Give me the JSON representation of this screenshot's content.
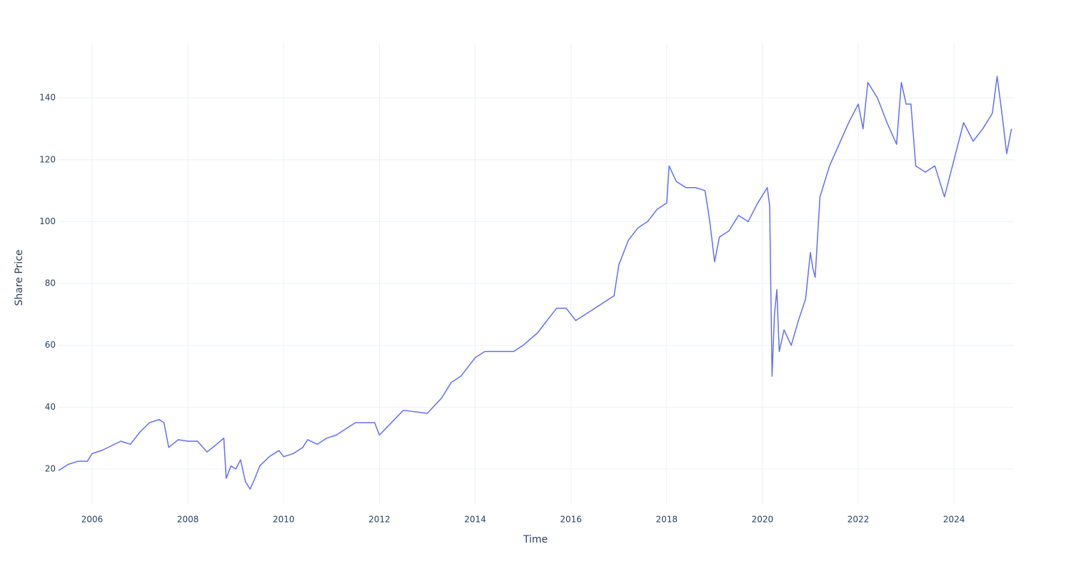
{
  "chart_data": {
    "type": "line",
    "xlabel": "Time",
    "ylabel": "Share Price",
    "x": [
      2005.3,
      2005.5,
      2005.7,
      2005.9,
      2006.0,
      2006.2,
      2006.4,
      2006.6,
      2006.8,
      2007.0,
      2007.2,
      2007.4,
      2007.5,
      2007.6,
      2007.8,
      2008.0,
      2008.2,
      2008.4,
      2008.6,
      2008.75,
      2008.8,
      2008.9,
      2009.0,
      2009.1,
      2009.2,
      2009.3,
      2009.4,
      2009.5,
      2009.7,
      2009.9,
      2010.0,
      2010.2,
      2010.4,
      2010.5,
      2010.7,
      2010.9,
      2011.1,
      2011.3,
      2011.5,
      2011.7,
      2011.9,
      2012.0,
      2012.5,
      2013.0,
      2013.3,
      2013.5,
      2013.7,
      2014.0,
      2014.2,
      2014.5,
      2014.8,
      2015.0,
      2015.3,
      2015.5,
      2015.7,
      2015.9,
      2016.1,
      2016.3,
      2016.5,
      2016.7,
      2016.9,
      2017.0,
      2017.2,
      2017.4,
      2017.6,
      2017.8,
      2018.0,
      2018.05,
      2018.2,
      2018.4,
      2018.6,
      2018.8,
      2018.9,
      2019.0,
      2019.1,
      2019.3,
      2019.5,
      2019.7,
      2019.9,
      2020.1,
      2020.15,
      2020.2,
      2020.25,
      2020.3,
      2020.35,
      2020.45,
      2020.6,
      2020.75,
      2020.9,
      2021.0,
      2021.05,
      2021.1,
      2021.2,
      2021.4,
      2021.6,
      2021.8,
      2022.0,
      2022.1,
      2022.2,
      2022.4,
      2022.6,
      2022.8,
      2022.9,
      2023.0,
      2023.1,
      2023.2,
      2023.4,
      2023.6,
      2023.8,
      2024.0,
      2024.2,
      2024.4,
      2024.6,
      2024.8,
      2024.9,
      2025.0,
      2025.1,
      2025.2
    ],
    "values": [
      19.5,
      21.5,
      22.5,
      22.5,
      25,
      26,
      27.5,
      29,
      28,
      32,
      35,
      36,
      35,
      27,
      29.5,
      29,
      29,
      25.5,
      28,
      30,
      17,
      21,
      20,
      23,
      16,
      13.5,
      17,
      21,
      24,
      26,
      24,
      25,
      27,
      29.5,
      28,
      30,
      31,
      33,
      35,
      35,
      35,
      31,
      39,
      38,
      43,
      48,
      50,
      56,
      58,
      58,
      58,
      60,
      64,
      68,
      72,
      72,
      68,
      70,
      72,
      74,
      76,
      86,
      94,
      98,
      100,
      104,
      106,
      118,
      113,
      111,
      111,
      110,
      100,
      87,
      95,
      97,
      102,
      100,
      106,
      111,
      105,
      50,
      70,
      78,
      58,
      65,
      60,
      68,
      75,
      90,
      85,
      82,
      108,
      118,
      125,
      132,
      138,
      130,
      145,
      140,
      132,
      125,
      145,
      138,
      138,
      118,
      116,
      118,
      108,
      120,
      132,
      126,
      130,
      135,
      147,
      135,
      122,
      130
    ],
    "color": "#636efa",
    "xlim": [
      2005.284,
      2025.25
    ],
    "xticks": [
      2006,
      2008,
      2010,
      2012,
      2014,
      2016,
      2018,
      2020,
      2022,
      2024
    ],
    "ylim": [
      8.46,
      157.8
    ],
    "yticks": [
      20,
      40,
      60,
      80,
      100,
      120,
      140
    ],
    "grid": true
  }
}
